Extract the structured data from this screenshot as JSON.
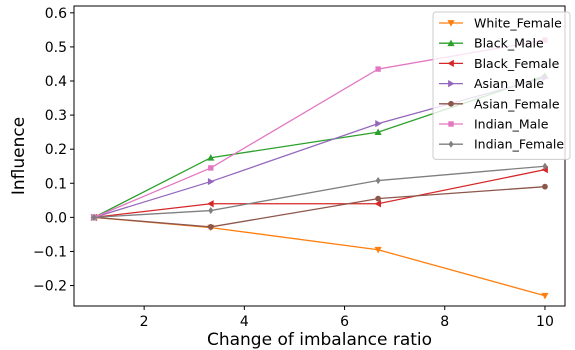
{
  "chart_data": {
    "type": "line",
    "title": "",
    "xlabel": "Change of imbalance ratio",
    "ylabel": "Influence",
    "x": [
      1,
      3.33,
      6.67,
      10
    ],
    "xlim": [
      0.6,
      10.4
    ],
    "ylim": [
      -0.26,
      0.62
    ],
    "xticks": [
      2,
      4,
      6,
      8,
      10
    ],
    "yticks": [
      -0.2,
      -0.1,
      0.0,
      0.1,
      0.2,
      0.3,
      0.4,
      0.5,
      0.6
    ],
    "ytick_labels": [
      "−0.2",
      "−0.1",
      "0.0",
      "0.1",
      "0.2",
      "0.3",
      "0.4",
      "0.5",
      "0.6"
    ],
    "xtick_labels": [
      "2",
      "4",
      "6",
      "8",
      "10"
    ],
    "grid": false,
    "legend_position": "top-right",
    "series": [
      {
        "name": "White_Female",
        "color": "#ff7f0e",
        "marker": "triangle-down",
        "values": [
          0.0,
          -0.03,
          -0.095,
          -0.23
        ]
      },
      {
        "name": "Black_Male",
        "color": "#2ca02c",
        "marker": "triangle-up",
        "values": [
          0.0,
          0.175,
          0.25,
          0.415
        ]
      },
      {
        "name": "Black_Female",
        "color": "#d62728",
        "marker": "triangle-left",
        "values": [
          0.0,
          0.04,
          0.04,
          0.14
        ]
      },
      {
        "name": "Asian_Male",
        "color": "#9467bd",
        "marker": "triangle-right",
        "values": [
          0.0,
          0.105,
          0.275,
          0.41
        ]
      },
      {
        "name": "Asian_Female",
        "color": "#8c564b",
        "marker": "circle",
        "values": [
          0.0,
          -0.028,
          0.055,
          0.09
        ]
      },
      {
        "name": "Indian_Male",
        "color": "#e377c2",
        "marker": "square",
        "values": [
          0.0,
          0.145,
          0.435,
          0.52
        ]
      },
      {
        "name": "Indian_Female",
        "color": "#7f7f7f",
        "marker": "diamond",
        "values": [
          0.0,
          0.02,
          0.108,
          0.15
        ]
      }
    ]
  }
}
